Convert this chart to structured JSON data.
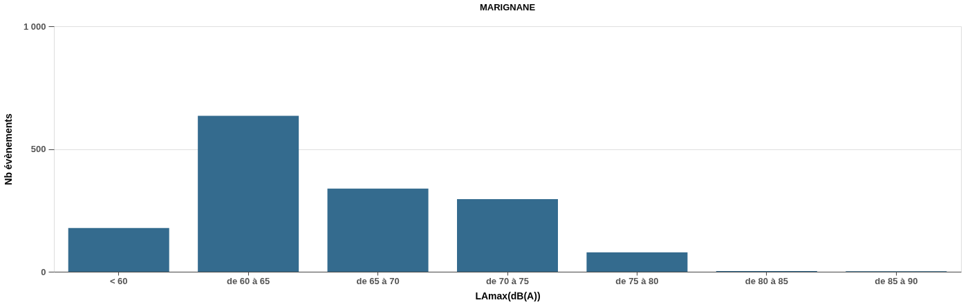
{
  "chart_data": {
    "type": "bar",
    "title": "MARIGNANE",
    "xlabel": "LAmax(dB(A))",
    "ylabel": "Nb évènements",
    "categories": [
      "< 60",
      "de 60 à 65",
      "de 65 à 70",
      "de 70 à 75",
      "de 75 à 80",
      "de 80 à 85",
      "de 85 à 90"
    ],
    "values": [
      178,
      635,
      339,
      296,
      79,
      3,
      2
    ],
    "color": "#346b8e",
    "ylim": [
      0,
      1000
    ],
    "yticks": [
      0,
      500,
      {
        "value": 1000,
        "label": "1 000"
      }
    ],
    "grid": "y"
  }
}
